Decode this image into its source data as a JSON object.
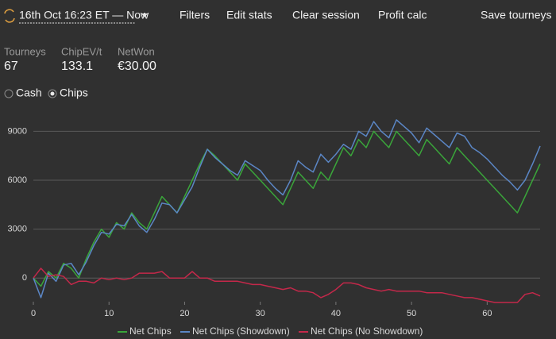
{
  "header": {
    "date_range": "16th Oct 16:23 ET — Now",
    "menu": [
      "Filters",
      "Edit stats",
      "Clear session",
      "Profit calc",
      "Save tourneys"
    ]
  },
  "stats": [
    {
      "label": "Tourneys",
      "value": "67"
    },
    {
      "label": "ChipEV/t",
      "value": "133.1"
    },
    {
      "label": "NetWon",
      "value": "€30.00"
    }
  ],
  "toggle": {
    "options": [
      "Cash",
      "Chips"
    ],
    "selected": 1
  },
  "chart_data": {
    "type": "line",
    "x": [
      0,
      1,
      2,
      3,
      4,
      5,
      6,
      7,
      8,
      9,
      10,
      11,
      12,
      13,
      14,
      15,
      16,
      17,
      18,
      19,
      20,
      21,
      22,
      23,
      24,
      25,
      26,
      27,
      28,
      29,
      30,
      31,
      32,
      33,
      34,
      35,
      36,
      37,
      38,
      39,
      40,
      41,
      42,
      43,
      44,
      45,
      46,
      47,
      48,
      49,
      50,
      51,
      52,
      53,
      54,
      55,
      56,
      57,
      58,
      59,
      60,
      61,
      62,
      63,
      64,
      65,
      66,
      67
    ],
    "series": [
      {
        "name": "Net Chips",
        "color": "#3aa53a",
        "values": [
          0,
          -500,
          400,
          0,
          900,
          600,
          0,
          1200,
          2200,
          3000,
          2500,
          3400,
          3000,
          4000,
          3400,
          3000,
          4000,
          5000,
          4500,
          4000,
          5000,
          6000,
          7000,
          7900,
          7500,
          7000,
          6500,
          6000,
          7000,
          6500,
          6000,
          5500,
          5000,
          4500,
          5500,
          6500,
          6000,
          5500,
          6500,
          6000,
          7000,
          8000,
          7500,
          8500,
          8000,
          9000,
          8500,
          8000,
          9000,
          8500,
          8000,
          7500,
          8500,
          8000,
          7500,
          7000,
          8000,
          7500,
          7000,
          6500,
          6000,
          5500,
          5000,
          4500,
          4000,
          5000,
          6000,
          7000
        ]
      },
      {
        "name": "Net Chips (Showdown)",
        "color": "#5b86c5",
        "values": [
          0,
          -1200,
          300,
          -200,
          800,
          900,
          200,
          1000,
          2000,
          2800,
          2700,
          3300,
          3200,
          3900,
          3200,
          2800,
          3600,
          4600,
          4500,
          4000,
          4800,
          5600,
          6800,
          7900,
          7400,
          7000,
          6600,
          6300,
          7200,
          6900,
          6600,
          6000,
          5500,
          5100,
          6000,
          7200,
          6800,
          6500,
          7600,
          7100,
          7600,
          8200,
          7900,
          9000,
          8700,
          9600,
          9000,
          8600,
          9700,
          9300,
          8900,
          8300,
          9200,
          8800,
          8400,
          8000,
          8900,
          8700,
          8000,
          7700,
          7300,
          6800,
          6300,
          5900,
          5400,
          6000,
          7000,
          8100
        ]
      },
      {
        "name": "Net Chips (No Showdown)",
        "color": "#c4284a",
        "values": [
          0,
          600,
          100,
          200,
          100,
          -400,
          -200,
          -200,
          -300,
          0,
          -100,
          0,
          -100,
          0,
          300,
          300,
          300,
          400,
          0,
          0,
          0,
          400,
          0,
          0,
          -200,
          -200,
          -200,
          -200,
          -300,
          -400,
          -400,
          -500,
          -600,
          -700,
          -600,
          -800,
          -800,
          -900,
          -1200,
          -1000,
          -700,
          -300,
          -300,
          -400,
          -600,
          -700,
          -800,
          -700,
          -800,
          -800,
          -800,
          -800,
          -900,
          -900,
          -900,
          -1000,
          -1100,
          -1200,
          -1200,
          -1300,
          -1400,
          -1500,
          -1500,
          -1500,
          -1500,
          -1000,
          -900,
          -1100
        ]
      }
    ],
    "xlim": [
      0,
      67
    ],
    "xticks": [
      0,
      10,
      20,
      30,
      40,
      50,
      60
    ],
    "ylim": [
      -1450,
      9750
    ],
    "yticks": [
      0,
      3000,
      6000,
      9000
    ],
    "grid": true,
    "legend": "bottom"
  }
}
